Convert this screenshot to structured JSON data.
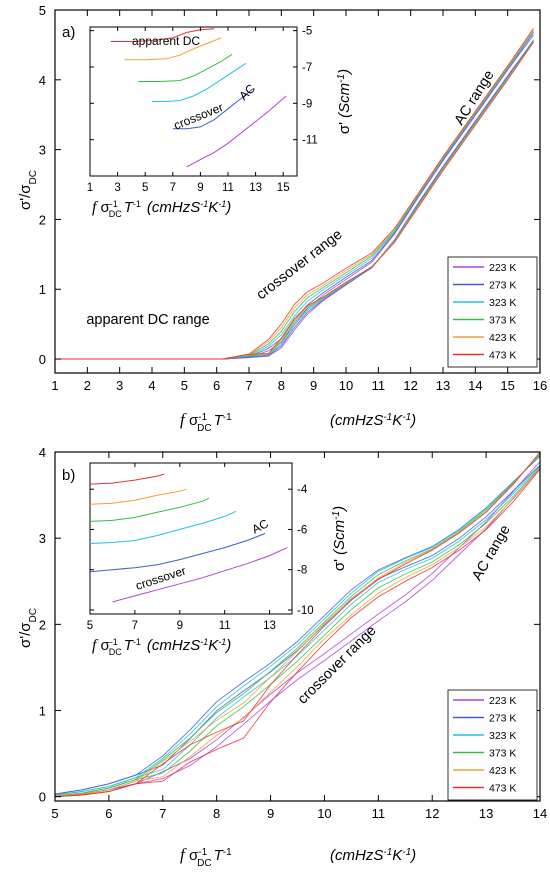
{
  "chart_data": [
    {
      "type": "line",
      "panel_label": "a)",
      "xlabel_suffix": "(cmHzS-1K-1)",
      "ylabel": "σ'/σDC",
      "xlim": [
        1,
        16
      ],
      "ylim": [
        -0.2,
        5
      ],
      "xticks": [
        1,
        2,
        3,
        4,
        5,
        6,
        7,
        8,
        9,
        10,
        11,
        12,
        13,
        14,
        15,
        16
      ],
      "yticks": [
        0,
        1,
        2,
        3,
        4,
        5
      ],
      "annotations": [
        "apparent DC range",
        "crossover range",
        "AC range"
      ],
      "legend_position": "bottom-right",
      "series": [
        {
          "name": "223 K",
          "color": "#b040e0",
          "x": [
            1,
            5,
            6.2,
            7,
            7.6,
            8,
            8.4,
            8.8,
            9.3,
            10,
            10.8,
            11.5,
            12.2,
            13,
            14,
            15,
            15.8
          ],
          "y": [
            0,
            0,
            0,
            0.02,
            0.08,
            0.2,
            0.45,
            0.68,
            0.88,
            1.1,
            1.35,
            1.75,
            2.25,
            2.8,
            3.45,
            4.1,
            4.6
          ]
        },
        {
          "name": "273 K",
          "color": "#3a5fd0",
          "x": [
            1,
            5,
            6.2,
            7,
            7.6,
            8,
            8.4,
            8.8,
            9.3,
            10,
            10.8,
            11.5,
            12.2,
            13,
            14,
            15,
            15.8
          ],
          "y": [
            0,
            0,
            0,
            0.03,
            0.1,
            0.24,
            0.5,
            0.72,
            0.9,
            1.12,
            1.36,
            1.75,
            2.25,
            2.8,
            3.45,
            4.1,
            4.62
          ]
        },
        {
          "name": "323 K",
          "color": "#20c0e0",
          "x": [
            1,
            5,
            6.2,
            7,
            7.6,
            8,
            8.4,
            8.8,
            9.3,
            10,
            10.8,
            11.5,
            12.2,
            13,
            14,
            15,
            15.8
          ],
          "y": [
            0,
            0,
            0,
            0.04,
            0.12,
            0.28,
            0.55,
            0.76,
            0.93,
            1.14,
            1.38,
            1.76,
            2.25,
            2.8,
            3.45,
            4.1,
            4.62
          ]
        },
        {
          "name": "373 K",
          "color": "#30c040",
          "x": [
            1,
            5,
            6.2,
            7,
            7.6,
            8,
            8.4,
            8.8,
            9.3,
            10,
            10.8,
            11.5,
            12.2,
            13,
            14,
            15,
            15.8
          ],
          "y": [
            0,
            0,
            0,
            0.05,
            0.14,
            0.32,
            0.6,
            0.8,
            0.95,
            1.16,
            1.4,
            1.76,
            2.25,
            2.8,
            3.45,
            4.1,
            4.63
          ]
        },
        {
          "name": "423 K",
          "color": "#f0a030",
          "x": [
            1,
            5,
            6.2,
            7,
            7.6,
            8,
            8.4,
            8.8,
            9.3,
            10,
            10.8,
            11.5,
            12.2,
            13,
            14,
            15,
            15.8
          ],
          "y": [
            0,
            0,
            0,
            0.06,
            0.16,
            0.36,
            0.64,
            0.83,
            0.97,
            1.18,
            1.41,
            1.77,
            2.25,
            2.8,
            3.45,
            4.1,
            4.63
          ]
        },
        {
          "name": "473 K",
          "color": "#e83030",
          "x": [
            1,
            5,
            6.2,
            7,
            7.6,
            8,
            8.4,
            8.8,
            9.3,
            10,
            10.8,
            11.5,
            12.2,
            13,
            14,
            15,
            15.8
          ],
          "y": [
            0,
            0,
            0,
            0.07,
            0.18,
            0.4,
            0.68,
            0.86,
            0.99,
            1.2,
            1.42,
            1.77,
            2.25,
            2.8,
            3.45,
            4.1,
            4.64
          ]
        }
      ],
      "inset": {
        "ylabel": "σ' (Scm-1)",
        "xlim": [
          1,
          16
        ],
        "ylim": [
          -13,
          -4.8
        ],
        "xticks": [
          1,
          3,
          5,
          7,
          9,
          11,
          13,
          15
        ],
        "yticks": [
          -5,
          -7,
          -9,
          -11
        ],
        "annotations": [
          "apparent DC",
          "crossover",
          "AC"
        ],
        "series": [
          {
            "name": "223 K",
            "color": "#b040e0",
            "x": [
              8,
              9,
              10,
              11,
              12,
              13,
              14,
              15.2
            ],
            "y": [
              -12.5,
              -12.1,
              -11.7,
              -11.2,
              -10.6,
              -10,
              -9.4,
              -8.6
            ]
          },
          {
            "name": "273 K",
            "color": "#3a5fd0",
            "x": [
              7,
              8,
              9,
              10,
              11,
              12,
              12.8
            ],
            "y": [
              -10.4,
              -10.4,
              -10.3,
              -9.9,
              -9.3,
              -8.7,
              -8.2
            ]
          },
          {
            "name": "323 K",
            "color": "#20c0e0",
            "x": [
              5.5,
              6.5,
              7.5,
              8.5,
              9.5,
              10.5,
              11.5,
              12.3
            ],
            "y": [
              -8.9,
              -8.9,
              -8.85,
              -8.6,
              -8.2,
              -7.7,
              -7.2,
              -6.8
            ]
          },
          {
            "name": "373 K",
            "color": "#30c040",
            "x": [
              4.5,
              6,
              7.5,
              8.5,
              9.5,
              10.5,
              11.3
            ],
            "y": [
              -7.8,
              -7.8,
              -7.75,
              -7.5,
              -7.1,
              -6.7,
              -6.3
            ]
          },
          {
            "name": "423 K",
            "color": "#f0a030",
            "x": [
              3.5,
              5,
              6.5,
              7.5,
              8.5,
              9.5,
              10.5
            ],
            "y": [
              -6.6,
              -6.6,
              -6.55,
              -6.35,
              -6,
              -5.7,
              -5.4
            ]
          },
          {
            "name": "473 K",
            "color": "#e83030",
            "x": [
              2.5,
              4,
              5.5,
              7,
              8,
              9,
              10
            ],
            "y": [
              -5.6,
              -5.6,
              -5.55,
              -5.4,
              -5.1,
              -4.95,
              -4.9
            ]
          }
        ]
      }
    },
    {
      "type": "line",
      "panel_label": "b)",
      "xlabel_suffix": "(cmHzS-1K-1)",
      "ylabel": "σ'/σDC",
      "xlim": [
        5,
        14
      ],
      "ylim": [
        -0.05,
        4
      ],
      "xticks": [
        5,
        6,
        7,
        8,
        9,
        10,
        11,
        12,
        13,
        14
      ],
      "yticks": [
        0,
        1,
        2,
        3,
        4
      ],
      "annotations": [
        "crossover range",
        "AC range"
      ],
      "legend_position": "bottom-right",
      "series": [
        {
          "name": "223 K",
          "color": "#b040e0",
          "x": [
            5,
            5.5,
            6,
            6.5,
            7,
            7.5,
            8,
            8.5,
            9,
            9.5,
            10,
            10.5,
            11,
            11.5,
            12,
            12.5,
            13,
            13.5,
            14
          ],
          "y": [
            0,
            0.03,
            0.08,
            0.15,
            0.25,
            0.4,
            0.62,
            0.88,
            1.15,
            1.4,
            1.62,
            1.85,
            2.08,
            2.3,
            2.55,
            2.85,
            3.15,
            3.5,
            3.85
          ]
        },
        {
          "name": "273 K",
          "color": "#3a5fd0",
          "x": [
            5,
            5.5,
            6,
            6.5,
            7,
            7.5,
            8,
            8.5,
            9,
            9.5,
            10,
            10.5,
            11,
            11.5,
            12,
            12.5,
            13,
            13.5,
            14
          ],
          "y": [
            0.03,
            0.08,
            0.15,
            0.25,
            0.42,
            0.72,
            1.05,
            1.28,
            1.5,
            1.75,
            2.05,
            2.35,
            2.58,
            2.72,
            2.85,
            3.05,
            3.3,
            3.6,
            3.9
          ]
        },
        {
          "name": "323 K",
          "color": "#20c0e0",
          "x": [
            5,
            5.5,
            6,
            6.5,
            7,
            7.5,
            8,
            8.5,
            9,
            9.5,
            10,
            10.5,
            11,
            11.5,
            12,
            12.5,
            13,
            13.5,
            14
          ],
          "y": [
            0.02,
            0.06,
            0.12,
            0.22,
            0.38,
            0.66,
            0.98,
            1.22,
            1.45,
            1.7,
            2,
            2.3,
            2.55,
            2.7,
            2.83,
            3.03,
            3.28,
            3.58,
            3.9
          ]
        },
        {
          "name": "373 K",
          "color": "#30c040",
          "x": [
            5,
            5.5,
            6,
            6.5,
            7,
            7.5,
            8,
            8.5,
            9,
            9.5,
            10,
            10.5,
            11,
            11.5,
            12,
            12.5,
            13,
            13.5,
            14
          ],
          "y": [
            0.01,
            0.04,
            0.1,
            0.2,
            0.35,
            0.6,
            0.9,
            1.12,
            1.38,
            1.65,
            1.95,
            2.25,
            2.5,
            2.66,
            2.8,
            3,
            3.25,
            3.56,
            3.9
          ]
        },
        {
          "name": "423 K",
          "color": "#f0a030",
          "x": [
            5,
            5.5,
            6,
            6.5,
            7,
            7.5,
            8,
            8.5,
            9,
            9.5,
            10,
            10.5,
            11,
            11.5,
            12,
            12.5,
            13,
            13.5,
            14
          ],
          "y": [
            0.01,
            0.03,
            0.08,
            0.18,
            0.32,
            0.55,
            0.8,
            1,
            1.3,
            1.6,
            1.92,
            2.2,
            2.45,
            2.63,
            2.78,
            2.98,
            3.22,
            3.54,
            3.9
          ]
        },
        {
          "name": "473 K",
          "color": "#e83030",
          "x": [
            5,
            5.5,
            6,
            6.5,
            7,
            7.5,
            8,
            8.5,
            9,
            9.5,
            10,
            10.5,
            11,
            11.5,
            12,
            12.5,
            13,
            13.5,
            14
          ],
          "y": [
            0,
            0.02,
            0.06,
            0.15,
            0.28,
            0.5,
            0.65,
            0.78,
            1.2,
            1.55,
            1.88,
            2.18,
            2.42,
            2.6,
            2.76,
            2.96,
            3.2,
            3.52,
            3.9
          ]
        }
      ],
      "inset": {
        "ylabel": "σ' (Scm-1)",
        "xlim": [
          5,
          14
        ],
        "ylim": [
          -10.2,
          -2.7
        ],
        "xticks": [
          5,
          7,
          9,
          11,
          13
        ],
        "yticks": [
          -4,
          -6,
          -8,
          -10
        ],
        "annotations": [
          "crossover",
          "AC"
        ],
        "series": [
          {
            "name": "223 K",
            "color": "#b040e0",
            "x": [
              6,
              7,
              8,
              9,
              10,
              11,
              12,
              13,
              13.8
            ],
            "y": [
              -9.6,
              -9.3,
              -9,
              -8.7,
              -8.4,
              -8.05,
              -7.7,
              -7.3,
              -6.9
            ]
          },
          {
            "name": "273 K",
            "color": "#3a5fd0",
            "x": [
              5,
              6,
              7,
              8,
              9,
              10,
              11,
              12,
              12.8
            ],
            "y": [
              -8.1,
              -8,
              -7.9,
              -7.75,
              -7.5,
              -7.2,
              -6.9,
              -6.55,
              -6.2
            ]
          },
          {
            "name": "323 K",
            "color": "#20c0e0",
            "x": [
              5,
              6,
              7,
              8,
              9,
              10,
              11,
              11.5
            ],
            "y": [
              -6.7,
              -6.65,
              -6.55,
              -6.3,
              -6,
              -5.7,
              -5.35,
              -5.1
            ]
          },
          {
            "name": "373 K",
            "color": "#30c040",
            "x": [
              5,
              6,
              7,
              8,
              9,
              10,
              10.3
            ],
            "y": [
              -5.6,
              -5.55,
              -5.4,
              -5.15,
              -4.9,
              -4.6,
              -4.45
            ]
          },
          {
            "name": "423 K",
            "color": "#f0a030",
            "x": [
              5,
              6,
              7,
              8,
              9,
              9.3
            ],
            "y": [
              -4.75,
              -4.7,
              -4.55,
              -4.3,
              -4.1,
              -4
            ]
          },
          {
            "name": "473 K",
            "color": "#e83030",
            "x": [
              5,
              6,
              7,
              8,
              8.3
            ],
            "y": [
              -3.75,
              -3.7,
              -3.55,
              -3.35,
              -3.25
            ]
          }
        ]
      }
    }
  ]
}
